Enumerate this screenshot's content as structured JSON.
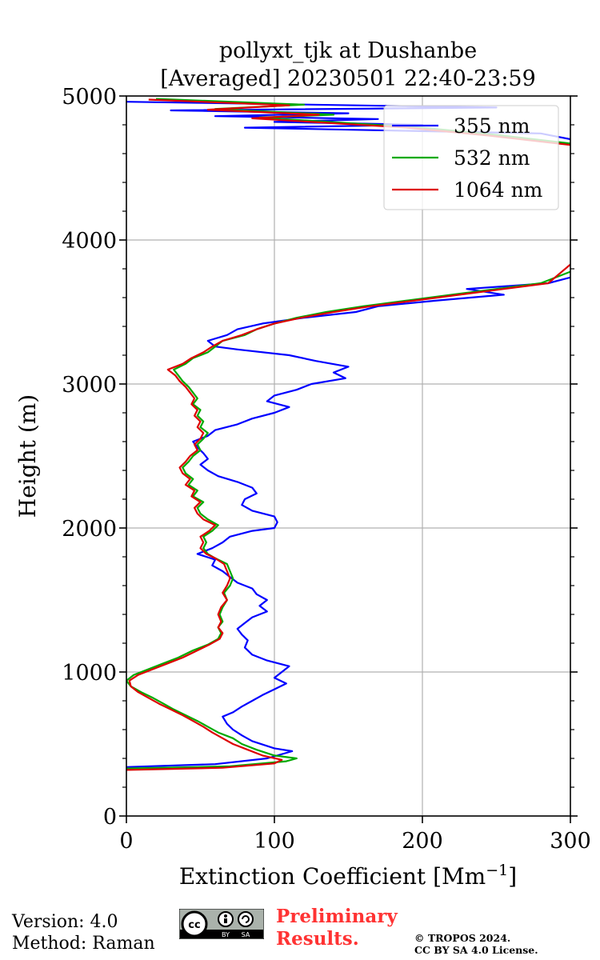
{
  "chart_data": {
    "type": "line",
    "title": [
      "pollyxt_tjk at Dushanbe",
      "[Averaged] 20230501 22:40-23:59"
    ],
    "xlabel": "Extinction Coefficient [Mm",
    "xlabel_sup": "−1",
    "xlabel_close": "]",
    "ylabel": "Height (m)",
    "xlim": [
      0,
      300
    ],
    "ylim": [
      0,
      5000
    ],
    "xticks": [
      0,
      100,
      200,
      300
    ],
    "yticks": [
      0,
      1000,
      2000,
      3000,
      4000,
      5000
    ],
    "grid": true,
    "legend_position": "top-right",
    "series": [
      {
        "name": "355 nm",
        "color": "#0000ff",
        "points": [
          [
            0,
            340
          ],
          [
            60,
            360
          ],
          [
            95,
            400
          ],
          [
            112,
            450
          ],
          [
            100,
            470
          ],
          [
            85,
            520
          ],
          [
            78,
            560
          ],
          [
            72,
            600
          ],
          [
            68,
            640
          ],
          [
            65,
            690
          ],
          [
            72,
            720
          ],
          [
            78,
            760
          ],
          [
            85,
            800
          ],
          [
            92,
            840
          ],
          [
            100,
            880
          ],
          [
            108,
            920
          ],
          [
            100,
            960
          ],
          [
            105,
            1000
          ],
          [
            110,
            1040
          ],
          [
            95,
            1080
          ],
          [
            85,
            1120
          ],
          [
            80,
            1170
          ],
          [
            82,
            1220
          ],
          [
            78,
            1260
          ],
          [
            75,
            1300
          ],
          [
            80,
            1340
          ],
          [
            85,
            1380
          ],
          [
            95,
            1420
          ],
          [
            90,
            1460
          ],
          [
            95,
            1500
          ],
          [
            88,
            1540
          ],
          [
            85,
            1580
          ],
          [
            75,
            1620
          ],
          [
            70,
            1660
          ],
          [
            65,
            1700
          ],
          [
            58,
            1740
          ],
          [
            60,
            1780
          ],
          [
            48,
            1820
          ],
          [
            58,
            1860
          ],
          [
            65,
            1900
          ],
          [
            70,
            1940
          ],
          [
            85,
            1980
          ],
          [
            100,
            2000
          ],
          [
            102,
            2040
          ],
          [
            100,
            2080
          ],
          [
            85,
            2120
          ],
          [
            78,
            2160
          ],
          [
            80,
            2200
          ],
          [
            88,
            2240
          ],
          [
            85,
            2280
          ],
          [
            75,
            2320
          ],
          [
            62,
            2360
          ],
          [
            55,
            2400
          ],
          [
            50,
            2440
          ],
          [
            55,
            2480
          ],
          [
            52,
            2520
          ],
          [
            48,
            2560
          ],
          [
            45,
            2600
          ],
          [
            55,
            2640
          ],
          [
            60,
            2680
          ],
          [
            75,
            2720
          ],
          [
            85,
            2760
          ],
          [
            100,
            2800
          ],
          [
            110,
            2840
          ],
          [
            95,
            2880
          ],
          [
            100,
            2920
          ],
          [
            115,
            2960
          ],
          [
            125,
            3000
          ],
          [
            148,
            3040
          ],
          [
            140,
            3080
          ],
          [
            150,
            3120
          ],
          [
            128,
            3160
          ],
          [
            110,
            3200
          ],
          [
            75,
            3240
          ],
          [
            60,
            3260
          ],
          [
            55,
            3300
          ],
          [
            68,
            3340
          ],
          [
            75,
            3380
          ],
          [
            92,
            3420
          ],
          [
            120,
            3460
          ],
          [
            155,
            3500
          ],
          [
            170,
            3540
          ],
          [
            210,
            3580
          ],
          [
            255,
            3620
          ],
          [
            230,
            3660
          ],
          [
            285,
            3700
          ],
          [
            300,
            3740
          ]
        ]
      },
      {
        "name": "532 nm",
        "color": "#00aa00",
        "points": [
          [
            0,
            330
          ],
          [
            70,
            345
          ],
          [
            108,
            380
          ],
          [
            115,
            400
          ],
          [
            100,
            420
          ],
          [
            88,
            460
          ],
          [
            78,
            500
          ],
          [
            72,
            540
          ],
          [
            62,
            580
          ],
          [
            55,
            620
          ],
          [
            48,
            660
          ],
          [
            40,
            700
          ],
          [
            32,
            740
          ],
          [
            25,
            780
          ],
          [
            18,
            820
          ],
          [
            10,
            860
          ],
          [
            3,
            900
          ],
          [
            0,
            940
          ],
          [
            5,
            980
          ],
          [
            15,
            1020
          ],
          [
            25,
            1060
          ],
          [
            35,
            1100
          ],
          [
            45,
            1150
          ],
          [
            55,
            1190
          ],
          [
            62,
            1230
          ],
          [
            64,
            1270
          ],
          [
            62,
            1310
          ],
          [
            65,
            1350
          ],
          [
            63,
            1400
          ],
          [
            65,
            1450
          ],
          [
            68,
            1500
          ],
          [
            66,
            1550
          ],
          [
            70,
            1600
          ],
          [
            72,
            1650
          ],
          [
            70,
            1700
          ],
          [
            68,
            1750
          ],
          [
            60,
            1790
          ],
          [
            55,
            1820
          ],
          [
            52,
            1860
          ],
          [
            54,
            1900
          ],
          [
            52,
            1940
          ],
          [
            58,
            1980
          ],
          [
            62,
            2020
          ],
          [
            55,
            2060
          ],
          [
            50,
            2100
          ],
          [
            48,
            2140
          ],
          [
            52,
            2180
          ],
          [
            45,
            2220
          ],
          [
            48,
            2260
          ],
          [
            42,
            2300
          ],
          [
            45,
            2340
          ],
          [
            40,
            2380
          ],
          [
            38,
            2420
          ],
          [
            42,
            2460
          ],
          [
            45,
            2500
          ],
          [
            50,
            2540
          ],
          [
            48,
            2580
          ],
          [
            52,
            2620
          ],
          [
            55,
            2660
          ],
          [
            50,
            2700
          ],
          [
            52,
            2740
          ],
          [
            48,
            2780
          ],
          [
            50,
            2820
          ],
          [
            45,
            2860
          ],
          [
            48,
            2900
          ],
          [
            45,
            2940
          ],
          [
            42,
            2980
          ],
          [
            38,
            3020
          ],
          [
            35,
            3060
          ],
          [
            32,
            3100
          ],
          [
            40,
            3140
          ],
          [
            45,
            3180
          ],
          [
            55,
            3220
          ],
          [
            60,
            3260
          ],
          [
            65,
            3300
          ],
          [
            80,
            3340
          ],
          [
            88,
            3380
          ],
          [
            100,
            3420
          ],
          [
            115,
            3460
          ],
          [
            135,
            3500
          ],
          [
            160,
            3540
          ],
          [
            190,
            3580
          ],
          [
            220,
            3620
          ],
          [
            250,
            3660
          ],
          [
            280,
            3700
          ],
          [
            300,
            3780
          ]
        ]
      },
      {
        "name": "1064 nm",
        "color": "#dd0000",
        "points": [
          [
            0,
            320
          ],
          [
            65,
            335
          ],
          [
            100,
            365
          ],
          [
            105,
            390
          ],
          [
            92,
            420
          ],
          [
            82,
            460
          ],
          [
            72,
            500
          ],
          [
            65,
            540
          ],
          [
            58,
            580
          ],
          [
            52,
            620
          ],
          [
            45,
            660
          ],
          [
            38,
            700
          ],
          [
            30,
            740
          ],
          [
            22,
            780
          ],
          [
            15,
            820
          ],
          [
            8,
            860
          ],
          [
            3,
            900
          ],
          [
            2,
            940
          ],
          [
            8,
            980
          ],
          [
            18,
            1020
          ],
          [
            28,
            1060
          ],
          [
            38,
            1100
          ],
          [
            48,
            1150
          ],
          [
            56,
            1190
          ],
          [
            63,
            1230
          ],
          [
            65,
            1270
          ],
          [
            62,
            1310
          ],
          [
            64,
            1350
          ],
          [
            62,
            1400
          ],
          [
            64,
            1450
          ],
          [
            68,
            1500
          ],
          [
            65,
            1550
          ],
          [
            68,
            1600
          ],
          [
            70,
            1650
          ],
          [
            68,
            1700
          ],
          [
            66,
            1750
          ],
          [
            60,
            1790
          ],
          [
            54,
            1820
          ],
          [
            50,
            1860
          ],
          [
            52,
            1900
          ],
          [
            50,
            1940
          ],
          [
            56,
            1980
          ],
          [
            60,
            2020
          ],
          [
            52,
            2060
          ],
          [
            48,
            2100
          ],
          [
            46,
            2140
          ],
          [
            50,
            2180
          ],
          [
            44,
            2220
          ],
          [
            46,
            2260
          ],
          [
            40,
            2300
          ],
          [
            43,
            2340
          ],
          [
            38,
            2380
          ],
          [
            36,
            2420
          ],
          [
            40,
            2460
          ],
          [
            43,
            2500
          ],
          [
            48,
            2540
          ],
          [
            46,
            2580
          ],
          [
            50,
            2620
          ],
          [
            52,
            2660
          ],
          [
            48,
            2700
          ],
          [
            50,
            2740
          ],
          [
            46,
            2780
          ],
          [
            48,
            2820
          ],
          [
            44,
            2860
          ],
          [
            46,
            2900
          ],
          [
            43,
            2940
          ],
          [
            40,
            2980
          ],
          [
            36,
            3020
          ],
          [
            33,
            3060
          ],
          [
            28,
            3100
          ],
          [
            38,
            3140
          ],
          [
            44,
            3180
          ],
          [
            52,
            3220
          ],
          [
            58,
            3260
          ],
          [
            65,
            3300
          ],
          [
            78,
            3340
          ],
          [
            88,
            3380
          ],
          [
            100,
            3420
          ],
          [
            118,
            3460
          ],
          [
            140,
            3500
          ],
          [
            165,
            3540
          ],
          [
            195,
            3580
          ],
          [
            225,
            3620
          ],
          [
            255,
            3660
          ],
          [
            285,
            3700
          ],
          [
            300,
            3830
          ]
        ]
      }
    ],
    "upper_spikes": {
      "355 nm": [
        [
          0,
          4960
        ],
        [
          250,
          4920
        ],
        [
          30,
          4900
        ],
        [
          150,
          4880
        ],
        [
          60,
          4860
        ],
        [
          170,
          4840
        ],
        [
          100,
          4820
        ],
        [
          200,
          4800
        ],
        [
          80,
          4780
        ],
        [
          280,
          4740
        ],
        [
          300,
          4700
        ]
      ],
      "532 nm": [
        [
          20,
          4980
        ],
        [
          120,
          4940
        ],
        [
          60,
          4910
        ],
        [
          140,
          4870
        ],
        [
          90,
          4850
        ],
        [
          200,
          4780
        ],
        [
          250,
          4730
        ],
        [
          300,
          4670
        ]
      ],
      "1064 nm": [
        [
          15,
          4975
        ],
        [
          110,
          4935
        ],
        [
          55,
          4905
        ],
        [
          130,
          4870
        ],
        [
          85,
          4845
        ],
        [
          190,
          4780
        ],
        [
          245,
          4725
        ],
        [
          300,
          4660
        ]
      ]
    }
  },
  "footer": {
    "version": "Version: 4.0",
    "method": "Method: Raman",
    "preliminary_line1": "Preliminary",
    "preliminary_line2": "Results.",
    "copyright_line1": "© TROPOS 2024.",
    "copyright_line2": "CC BY SA 4.0 License.",
    "license_badge": [
      "cc",
      "BY",
      "SA"
    ]
  }
}
